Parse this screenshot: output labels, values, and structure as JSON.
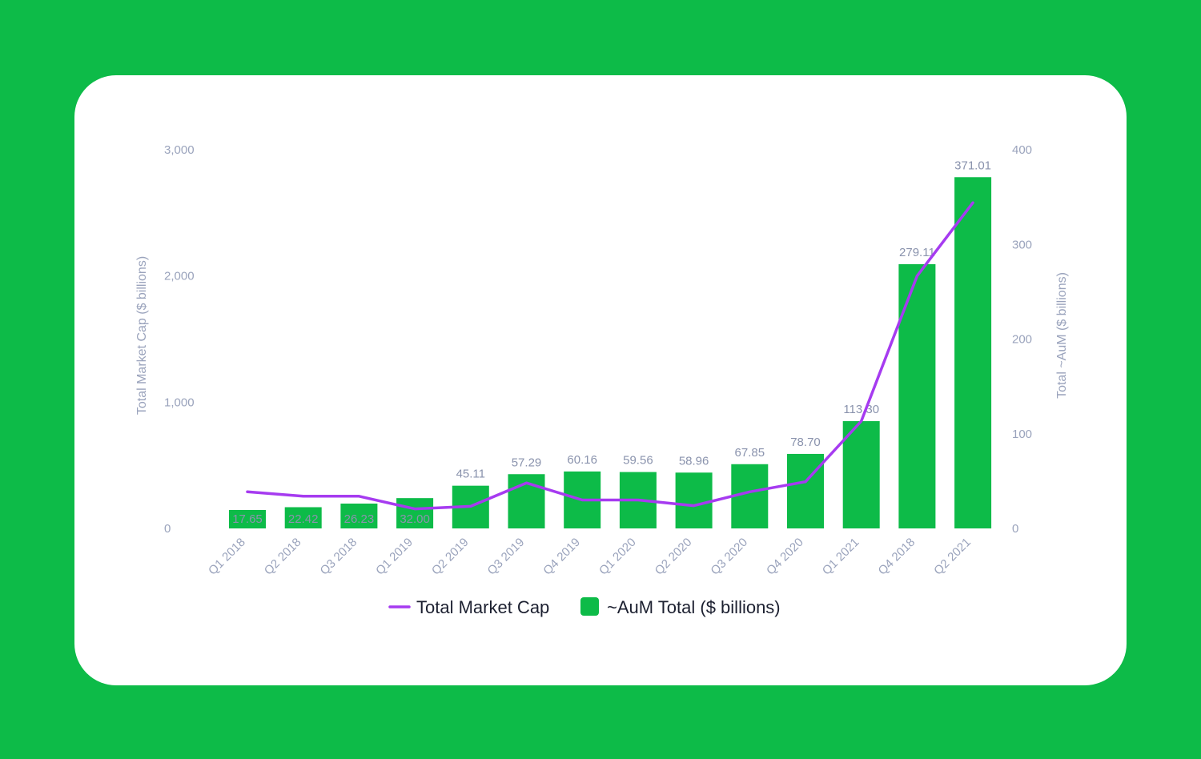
{
  "colors": {
    "background": "#0dbb48",
    "card": "#ffffff",
    "bar": "#0dbb48",
    "line": "#a63bf0",
    "axis_text": "#9aa3bc",
    "legend_text": "#1c2030"
  },
  "chart_data": {
    "type": "bar",
    "categories": [
      "Q1 2018",
      "Q2 2018",
      "Q3 2018",
      "Q1 2019",
      "Q2 2019",
      "Q3 2019",
      "Q4 2019",
      "Q1 2020",
      "Q2 2020",
      "Q3 2020",
      "Q4 2020",
      "Q1 2021",
      "Q4 2018",
      "Q2 2021"
    ],
    "series": [
      {
        "name": "~AuM Total ($ billions)",
        "type": "bar",
        "axis": "right",
        "values": [
          17.65,
          22.42,
          26.23,
          32.0,
          45.11,
          57.29,
          60.16,
          59.56,
          58.96,
          67.85,
          78.7,
          113.3,
          279.11,
          371.01
        ],
        "labels": [
          "17.65",
          "22.42",
          "26.23",
          "32.00",
          "45.11",
          "57.29",
          "60.16",
          "59.56",
          "58.96",
          "67.85",
          "78.70",
          "113.30",
          "279.11",
          "371.01"
        ]
      },
      {
        "name": "Total Market Cap",
        "type": "line",
        "axis": "left",
        "values": [
          290,
          255,
          255,
          155,
          175,
          360,
          225,
          225,
          180,
          290,
          370,
          850,
          2000,
          2580
        ]
      }
    ],
    "left_axis": {
      "label": "Total Market Cap ($ billions)",
      "ylim": [
        0,
        3000
      ],
      "ticks": [
        0,
        1000,
        2000,
        3000
      ],
      "tick_labels": [
        "0",
        "1,000",
        "2,000",
        "3,000"
      ]
    },
    "right_axis": {
      "label": "Total ~AuM ($ billions)",
      "ylim": [
        0,
        400
      ],
      "ticks": [
        0,
        100,
        200,
        300,
        400
      ],
      "tick_labels": [
        "0",
        "100",
        "200",
        "300",
        "400"
      ]
    },
    "legend": {
      "position": "bottom",
      "entries": [
        "Total Market Cap",
        "~AuM Total ($ billions)"
      ]
    },
    "grid": false
  }
}
